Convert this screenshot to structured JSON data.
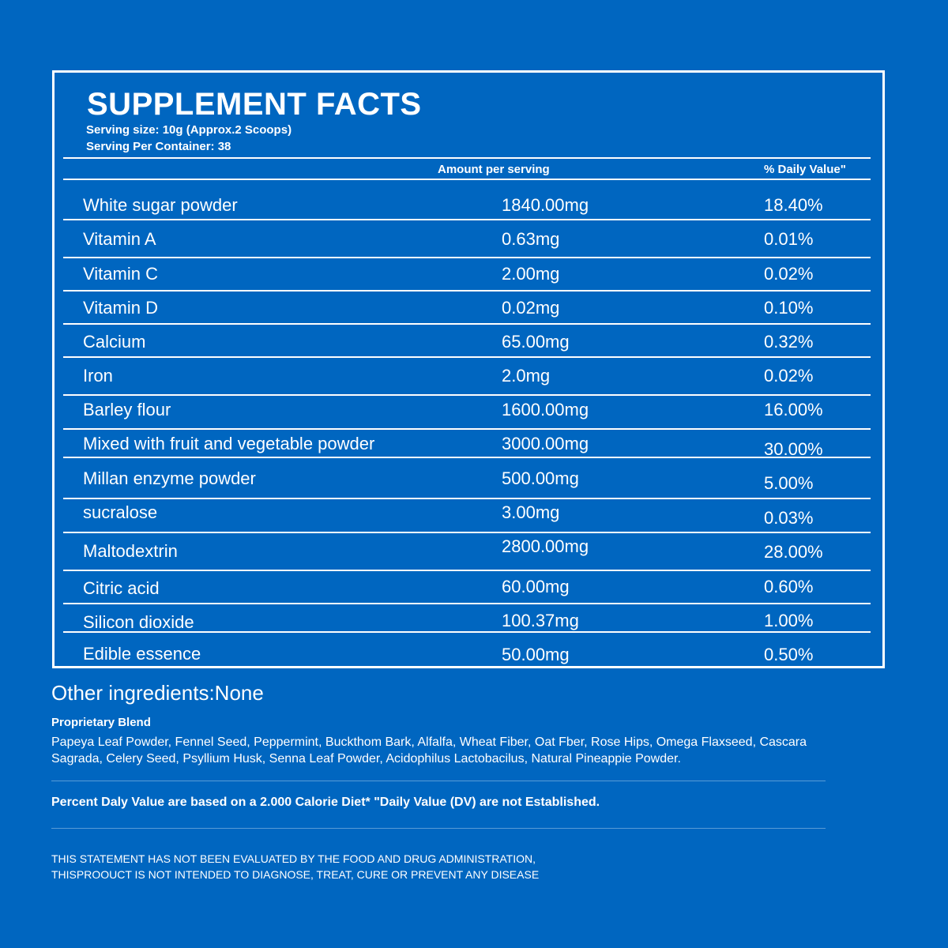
{
  "title": "SUPPLEMENT FACTS",
  "serving_size": "Serving size: 10g (Approx.2 Scoops)",
  "servings_per_container": "Serving Per Container: 38",
  "headers": {
    "amount": "Amount per serving",
    "daily_value": "% Daily Value\""
  },
  "rows": [
    {
      "name": "White sugar powder",
      "amount": "1840.00mg",
      "dv": "18.40%"
    },
    {
      "name": "Vitamin A",
      "amount": "0.63mg",
      "dv": "0.01%"
    },
    {
      "name": "Vitamin C",
      "amount": "2.00mg",
      "dv": "0.02%"
    },
    {
      "name": "Vitamin D",
      "amount": "0.02mg",
      "dv": "0.10%"
    },
    {
      "name": "Calcium",
      "amount": "65.00mg",
      "dv": "0.32%"
    },
    {
      "name": "Iron",
      "amount": "2.0mg",
      "dv": "0.02%"
    },
    {
      "name": "Barley flour",
      "amount": "1600.00mg",
      "dv": "16.00%"
    },
    {
      "name": "Mixed with fruit and vegetable powder",
      "amount": "3000.00mg",
      "dv": "30.00%"
    },
    {
      "name": "Millan enzyme powder",
      "amount": "500.00mg",
      "dv": "5.00%"
    },
    {
      "name": "sucralose",
      "amount": "3.00mg",
      "dv": "0.03%"
    },
    {
      "name": "Maltodextrin",
      "amount": "2800.00mg",
      "dv": "28.00%"
    },
    {
      "name": "Citric acid",
      "amount": "60.00mg",
      "dv": "0.60%"
    },
    {
      "name": "Silicon dioxide",
      "amount": "100.37mg",
      "dv": "1.00%"
    },
    {
      "name": "Edible essence",
      "amount": "50.00mg",
      "dv": "0.50%"
    }
  ],
  "other_ingredients": "Other ingredients:None",
  "proprietary_blend": {
    "title": "Proprietary Blend",
    "text": "Papeya Leaf Powder, Fennel Seed, Peppermint, Buckthom Bark, Alfalfa, Wheat Fiber, Oat Fber, Rose Hips, Omega Flaxseed, Cascara Sagrada, Celery Seed, Psyllium Husk, Senna Leaf Powder, Acidophilus Lactobacilus, Natural Pineappie Powder."
  },
  "dv_note": "Percent Daly Value are based on a 2.000 Calorie Diet* \"Daily Value (DV) are not Established.",
  "disclaimer": {
    "line1": "THIS STATEMENT HAS NOT BEEN EVALUATED BY THE FOOD AND DRUG ADMINISTRATION,",
    "line2": "THISPROOUCT IS NOT INTENDED TO DIAGNOSE, TREAT, CURE OR PREVENT ANY DISEASE"
  },
  "colors": {
    "background": "#0066c0",
    "text": "#ffffff"
  }
}
